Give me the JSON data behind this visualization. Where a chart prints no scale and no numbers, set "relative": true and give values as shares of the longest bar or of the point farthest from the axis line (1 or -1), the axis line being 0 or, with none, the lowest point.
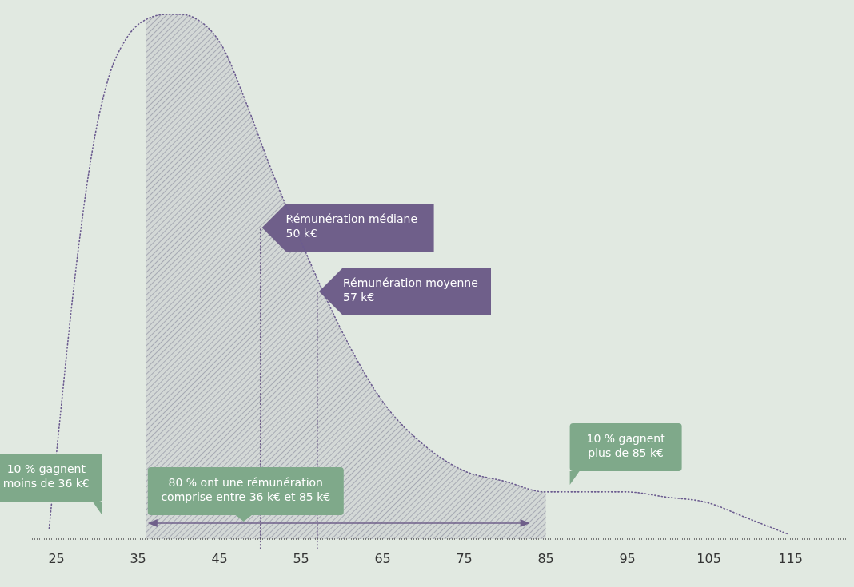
{
  "chart_data": {
    "type": "line",
    "relative": true,
    "line_style": "dotted",
    "color": "#6b5b8f",
    "x": [
      24.1,
      25.5,
      27.5,
      29.5,
      31.4,
      33.4,
      35.4,
      38.4,
      40.3,
      42.3,
      45.3,
      48.3,
      51.2,
      55.2,
      60.2,
      65.1,
      70.0,
      75.0,
      80.0,
      84.9,
      89.9,
      94.8,
      99.8,
      104.7,
      109.7,
      114.6
    ],
    "values": [
      0.02,
      0.24,
      0.53,
      0.75,
      0.88,
      0.95,
      0.985,
      1.0,
      1.0,
      0.99,
      0.94,
      0.83,
      0.71,
      0.56,
      0.39,
      0.26,
      0.18,
      0.13,
      0.11,
      0.09,
      0.09,
      0.09,
      0.08,
      0.07,
      0.04,
      0.01
    ],
    "xlim": [
      22,
      122
    ],
    "xticks": [
      25,
      35,
      45,
      55,
      65,
      75,
      85,
      95,
      105,
      115
    ],
    "bands": [
      {
        "axis": "x",
        "from": 36,
        "to": 85,
        "label": "80 % ont une rémunération\ncomprise entre 36 k€ et 85 k€",
        "color": "#6f6f8a"
      }
    ],
    "ref_lines": [
      {
        "axis": "x",
        "value": 50,
        "label": "Rémunération médiane\n50 k€",
        "color": "#6f5f8a"
      },
      {
        "axis": "x",
        "value": 57,
        "label": "Rémunération moyenne\n57 k€",
        "color": "#6f5f8a"
      }
    ],
    "annotations": [
      "10 % gagnent\nmoins de 36 k€",
      "10 % gagnent\nplus de 85 k€"
    ]
  }
}
